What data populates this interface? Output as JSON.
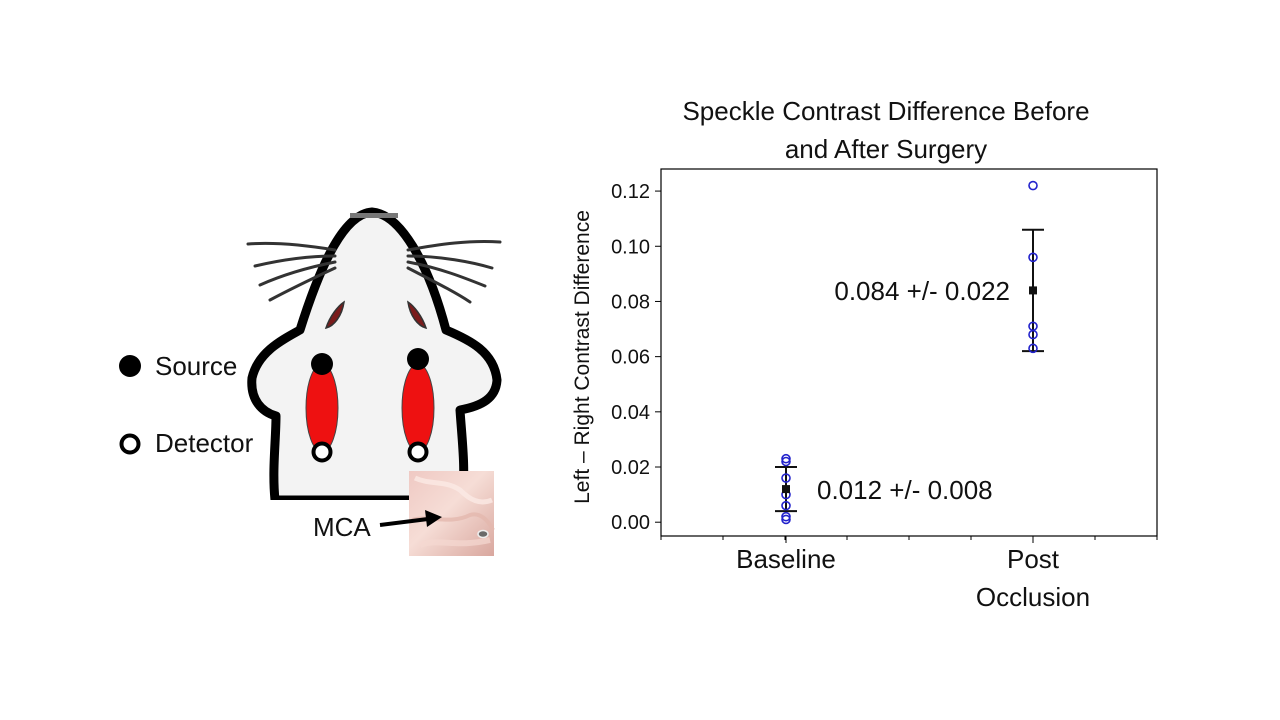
{
  "diagram": {
    "legend": [
      {
        "label": "Source",
        "marker": "filled-circle"
      },
      {
        "label": "Detector",
        "marker": "open-circle"
      }
    ],
    "photo_label": "MCA",
    "probe_color": "#ee1111",
    "skin_color": "#f3f3f3"
  },
  "chart_data": {
    "type": "scatter",
    "title": [
      "Speckle Contrast Difference Before",
      "and After Surgery"
    ],
    "xlabel": "",
    "ylabel": "Left – Right Contrast Difference",
    "categories": [
      [
        "Baseline"
      ],
      [
        "Post",
        "Occlusion"
      ]
    ],
    "ylim": [
      -0.005,
      0.128
    ],
    "yticks": [
      "0.00",
      "0.02",
      "0.04",
      "0.06",
      "0.08",
      "0.10",
      "0.12"
    ],
    "ytick_values": [
      0.0,
      0.02,
      0.04,
      0.06,
      0.08,
      0.1,
      0.12
    ],
    "grid": false,
    "point_color": "#2222cc",
    "mean_color": "#111111",
    "groups": [
      {
        "category": "Baseline",
        "points": [
          0.001,
          0.002,
          0.006,
          0.01,
          0.016,
          0.022,
          0.023
        ],
        "mean": 0.012,
        "error": 0.008,
        "annotation": "0.012 +/- 0.008"
      },
      {
        "category": "Post Occlusion",
        "points": [
          0.063,
          0.068,
          0.071,
          0.096,
          0.122
        ],
        "mean": 0.084,
        "error": 0.022,
        "annotation": "0.084 +/- 0.022"
      }
    ]
  }
}
